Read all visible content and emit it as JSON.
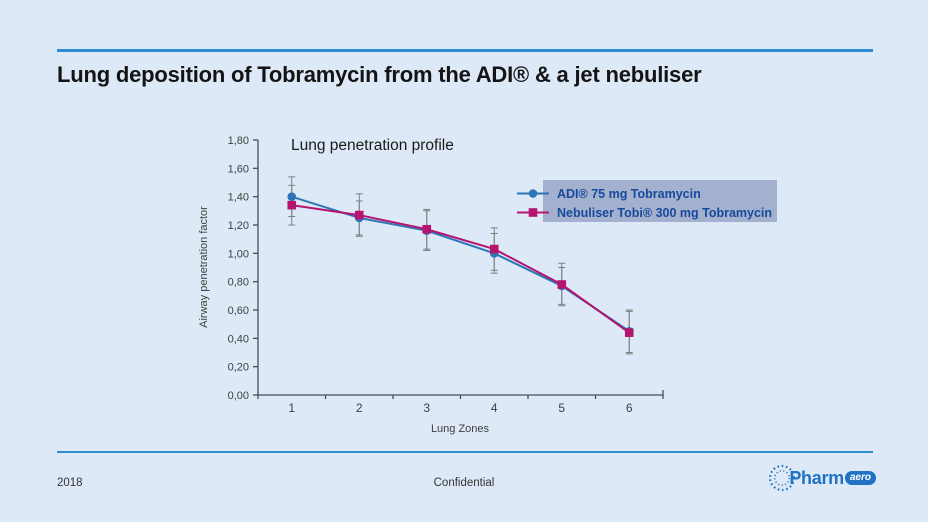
{
  "slide": {
    "title": "Lung deposition of Tobramycin from the ADI® & a jet nebuliser",
    "footer": {
      "year": "2018",
      "label": "Confidential"
    },
    "logo": {
      "name": "Pharm",
      "badge": "aero"
    },
    "colors": {
      "background": "#dde9f7",
      "rule": "#2e8fd0",
      "legend_bg": "#a3b1cf",
      "legend_text": "#17499c",
      "axis": "#454f59",
      "tick_label": "#404040",
      "error_bar": "#7f7f7f"
    }
  },
  "chart_data": {
    "type": "line",
    "title": "Lung penetration profile",
    "xlabel": "Lung Zones",
    "ylabel": "Airway penetration factor",
    "categories": [
      "1",
      "2",
      "3",
      "4",
      "5",
      "6"
    ],
    "ylim": [
      0,
      1.8
    ],
    "ytick_step": 0.2,
    "ytick_labels": [
      "0,00",
      "0,20",
      "0,40",
      "0,60",
      "0,80",
      "1,00",
      "1,20",
      "1,40",
      "1,60",
      "1,80"
    ],
    "decimal_separator": ",",
    "grid": false,
    "legend_position": "upper right",
    "error_bar_color": "#7f7f7f",
    "series": [
      {
        "name": "ADI® 75 mg Tobramycin",
        "marker": "circle",
        "color": "#2e75b6",
        "values": [
          1.4,
          1.25,
          1.16,
          1.0,
          0.77,
          0.45
        ],
        "error": [
          0.14,
          0.12,
          0.14,
          0.14,
          0.13,
          0.15
        ]
      },
      {
        "name": "Nebuliser Tobi® 300 mg Tobramycin",
        "marker": "square",
        "color": "#b5156e",
        "values": [
          1.34,
          1.27,
          1.17,
          1.03,
          0.78,
          0.44
        ],
        "error": [
          0.14,
          0.15,
          0.14,
          0.15,
          0.15,
          0.15
        ]
      }
    ]
  }
}
